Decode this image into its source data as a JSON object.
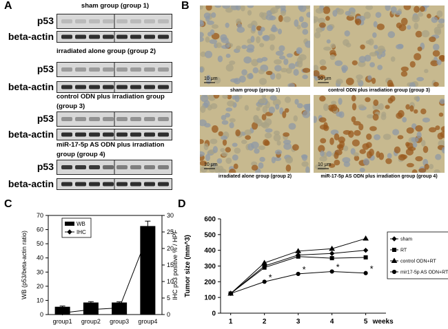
{
  "panel_labels": [
    "A",
    "B",
    "C",
    "D"
  ],
  "panel_a": {
    "rows": [
      {
        "title": "sham group (group 1)",
        "bands": [
          "p53",
          "beta-actin"
        ]
      },
      {
        "title": "irradiated alone group (group 2)",
        "bands": [
          "p53",
          "beta-actin"
        ]
      },
      {
        "title": "control ODN plus irradiation group (group 3)",
        "bands": [
          "p53",
          "beta-actin"
        ]
      },
      {
        "title": "miR-17-5p AS ODN plus irradiation group (group 4)",
        "bands": [
          "p53",
          "beta-actin"
        ]
      }
    ]
  },
  "panel_b": {
    "images": [
      {
        "caption": "sham group (group 1)",
        "scale": "10 μm"
      },
      {
        "caption": "control ODN plus irradiation group (group 3)",
        "scale": "10 μm"
      },
      {
        "caption": "irradiated alone group (group 2)",
        "scale": "10 μm"
      },
      {
        "caption": "miR-17-5p AS ODN plus irradiation group (group 4)",
        "scale": "10 μm"
      }
    ]
  },
  "chart_data": [
    {
      "type": "bar",
      "categories": [
        "group1",
        "group2",
        "group3",
        "group4"
      ],
      "series": [
        {
          "name": "WB",
          "type": "bar",
          "color": "#000000",
          "values": [
            5.5,
            8.5,
            8.5,
            62.5
          ],
          "errors": [
            0.5,
            0.6,
            0.5,
            3.5
          ]
        },
        {
          "name": "IHC",
          "type": "line",
          "axis": "y2",
          "color": "#000000",
          "values": [
            0.5,
            1.5,
            2,
            24
          ]
        }
      ],
      "ylabel": "WB (p53/beta-actin ratio)",
      "y2label": "IHC p53 positive % / HPF",
      "ylim": [
        0,
        70
      ],
      "yticks": [
        0,
        10,
        20,
        30,
        40,
        50,
        60,
        70
      ],
      "y2lim": [
        0,
        30
      ],
      "y2ticks": [
        0,
        5,
        10,
        15,
        20,
        25,
        30
      ],
      "legend": "upper left"
    },
    {
      "type": "line",
      "x": [
        1,
        2,
        3,
        4,
        5
      ],
      "xlim": [
        0.7,
        5.6
      ],
      "xticks": [
        1,
        2,
        3,
        4,
        5
      ],
      "xlabel": "weeks",
      "ylabel": "Tumor size (mm^3)",
      "ylim": [
        0,
        600
      ],
      "yticks": [
        0,
        100,
        200,
        300,
        400,
        500,
        600
      ],
      "series": [
        {
          "name": "sham",
          "marker": "diamond",
          "color": "#000000",
          "values": [
            125,
            300,
            370,
            380,
            400
          ]
        },
        {
          "name": "RT",
          "marker": "square",
          "color": "#000000",
          "values": [
            125,
            290,
            360,
            350,
            355
          ]
        },
        {
          "name": "control ODN+RT",
          "marker": "triangle",
          "color": "#000000",
          "values": [
            125,
            320,
            395,
            410,
            475
          ]
        },
        {
          "name": "mir17-5p AS ODN+RT",
          "marker": "circle",
          "color": "#000000",
          "values": [
            125,
            200,
            250,
            265,
            255
          ]
        }
      ],
      "annotations": [
        {
          "x": 2,
          "text": "*"
        },
        {
          "x": 3,
          "text": "*"
        },
        {
          "x": 4,
          "text": "*"
        },
        {
          "x": 5,
          "text": "*"
        }
      ],
      "legend": "right"
    }
  ]
}
